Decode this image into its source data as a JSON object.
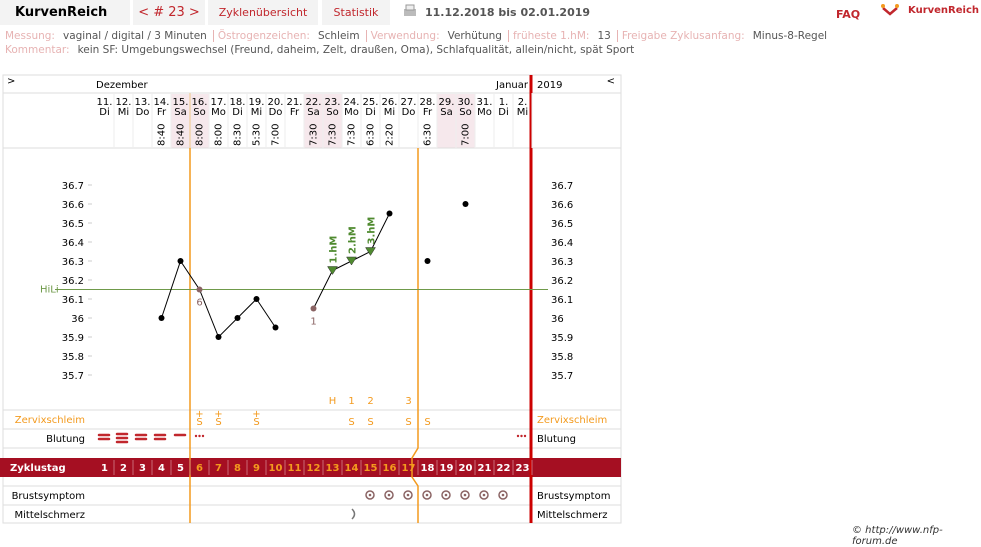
{
  "nav": {
    "logo": "KurvenReich",
    "cycle": "< # 23 >",
    "tabs": [
      "Zyklenübersicht",
      "Statistik"
    ],
    "range": "11.12.2018 bis 02.01.2019",
    "faq": "FAQ",
    "brand": "KurvenReich"
  },
  "info": {
    "items": [
      {
        "label": "Messung:",
        "value": "vaginal / digital / 3 Minuten"
      },
      {
        "label": "Östrogenzeichen:",
        "value": "Schleim"
      },
      {
        "label": "Verwendung:",
        "value": "Verhütung"
      },
      {
        "label": "früheste 1.hM:",
        "value": "13"
      },
      {
        "label": "Freigabe Zyklusanfang:",
        "value": "Minus-8-Regel"
      }
    ],
    "comment_label": "Kommentar:",
    "comment": "kein SF: Umgebungswechsel (Freund, daheim, Zelt, draußen, Oma), Schlafqualität, allein/nicht, spät Sport"
  },
  "chart_data": {
    "type": "line",
    "nav_left": ">",
    "nav_right": "<",
    "month_start": "Dezember",
    "month_end": "Januar",
    "year": "2019",
    "categories": [
      "11.",
      "12.",
      "13.",
      "14.",
      "15.",
      "16.",
      "17.",
      "18.",
      "19.",
      "20.",
      "21.",
      "22.",
      "23.",
      "24.",
      "25.",
      "26.",
      "27.",
      "28.",
      "29.",
      "30.",
      "31.",
      "1.",
      "2."
    ],
    "weekdays": [
      "Di",
      "Mi",
      "Do",
      "Fr",
      "Sa",
      "So",
      "Mo",
      "Di",
      "Mi",
      "Do",
      "Fr",
      "Sa",
      "So",
      "Mo",
      "Di",
      "Mi",
      "Do",
      "Fr",
      "Sa",
      "So",
      "Mo",
      "Di",
      "Mi"
    ],
    "shaded": [
      false,
      false,
      false,
      false,
      true,
      true,
      false,
      false,
      false,
      false,
      false,
      true,
      true,
      false,
      false,
      false,
      false,
      false,
      true,
      true,
      false,
      false,
      false
    ],
    "times": [
      null,
      null,
      null,
      "8:40",
      "8:40",
      "8:00",
      "8:00",
      "8:30",
      "5:30",
      "7:00",
      null,
      "7:30",
      "7:30",
      "7:30",
      "6:30",
      "2:20",
      null,
      "6:30",
      null,
      "7:00",
      null,
      null,
      null
    ],
    "values": [
      null,
      null,
      null,
      36,
      36.3,
      36.15,
      35.9,
      36,
      36.1,
      35.95,
      null,
      36.05,
      36.25,
      36.3,
      36.35,
      36.55,
      null,
      36.3,
      null,
      36.6,
      null,
      null,
      null
    ],
    "connected": [
      false,
      false,
      false,
      true,
      true,
      true,
      true,
      true,
      true,
      true,
      false,
      true,
      true,
      true,
      true,
      true,
      false,
      false,
      false,
      false,
      false,
      false,
      false
    ],
    "markers": [
      null,
      null,
      null,
      "dot",
      "dot",
      "excluded",
      "dot",
      "dot",
      "dot",
      "dot",
      null,
      "excluded",
      "hm",
      "hm",
      "hm",
      "dot",
      null,
      "dot",
      null,
      "dot",
      null,
      null,
      null
    ],
    "point_labels": [
      null,
      null,
      null,
      null,
      null,
      "6",
      null,
      null,
      null,
      null,
      null,
      "1",
      null,
      null,
      null,
      null,
      null,
      null,
      null,
      null,
      null,
      null,
      null
    ],
    "hm_labels": [
      null,
      null,
      null,
      null,
      null,
      null,
      null,
      null,
      null,
      null,
      null,
      null,
      "1.hM",
      "2.hM",
      "3.hM",
      null,
      null,
      null,
      null,
      null,
      null,
      null,
      null
    ],
    "color": "#000000",
    "hm_color": "#4f8a2f",
    "excluded_color": "#8a6363",
    "ylim": [
      35.5,
      36.9
    ],
    "yticks": [
      35.7,
      35.8,
      35.9,
      36,
      36.1,
      36.2,
      36.3,
      36.4,
      36.5,
      36.6,
      36.7
    ],
    "coverline": {
      "label": "HiLi",
      "value": 36.15,
      "color": "#6f9a4a"
    },
    "evaluation": [
      null,
      null,
      null,
      null,
      null,
      null,
      null,
      null,
      null,
      null,
      null,
      null,
      "H",
      "1",
      "2",
      null,
      "3",
      null,
      null,
      null,
      null,
      null,
      null
    ],
    "rows": {
      "zervix": "Zervixschleim",
      "blutung": "Blutung",
      "zyklustag": "Zyklustag",
      "brust": "Brustsymptom",
      "mittel": "Mittelschmerz"
    },
    "zervix_plus": [
      null,
      null,
      null,
      null,
      null,
      "+",
      "+",
      null,
      "+",
      null,
      null,
      null,
      null,
      null,
      null,
      null,
      null,
      null,
      null,
      null,
      null,
      null,
      null
    ],
    "zervix": [
      null,
      null,
      null,
      null,
      null,
      "S",
      "S",
      null,
      "S",
      null,
      null,
      null,
      null,
      "S",
      "S",
      null,
      "S",
      "S",
      null,
      null,
      null,
      null,
      null
    ],
    "cycle_days": [
      1,
      2,
      3,
      4,
      5,
      6,
      7,
      8,
      9,
      10,
      11,
      12,
      13,
      14,
      15,
      16,
      17,
      18,
      19,
      20,
      21,
      22,
      23
    ],
    "cycle_day_colors": [
      "#fff",
      "#fff",
      "#fff",
      "#fff",
      "#fff",
      "#f39a1e",
      "#f39a1e",
      "#f39a1e",
      "#f39a1e",
      "#f39a1e",
      "#f39a1e",
      "#f39a1e",
      "#f39a1e",
      "#f39a1e",
      "#f39a1e",
      "#f39a1e",
      "#f39a1e",
      "#fff",
      "#fff",
      "#fff",
      "#fff",
      "#fff",
      "#fff"
    ]
  },
  "footer": "© http://www.nfp-forum.de"
}
